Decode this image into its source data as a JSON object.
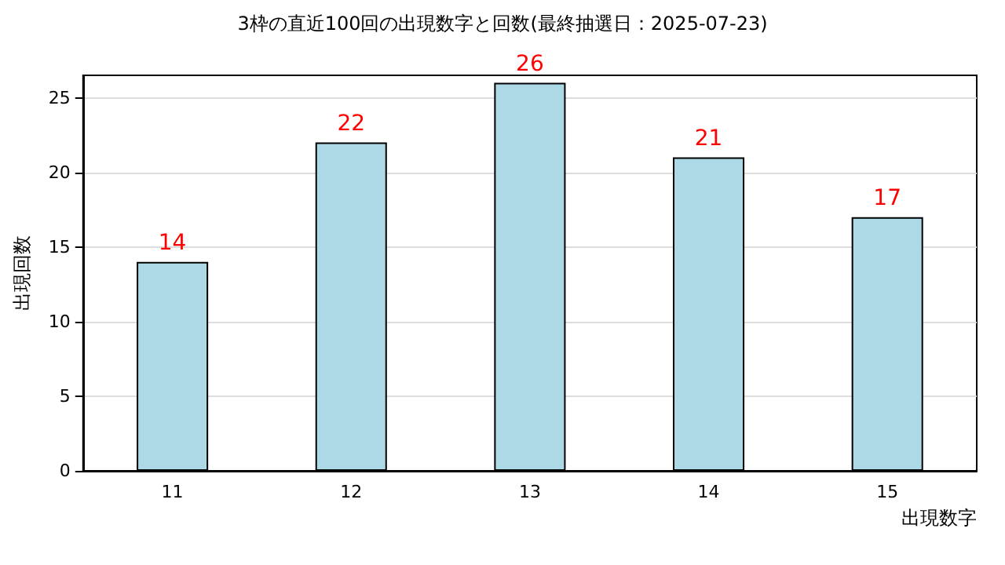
{
  "chart_data": {
    "type": "bar",
    "title": "3枠の直近100回の出現数字と回数(最終抽選日：2025-07-23)",
    "xlabel": "出現数字",
    "ylabel": "出現回数",
    "categories": [
      "11",
      "12",
      "13",
      "14",
      "15"
    ],
    "values": [
      14,
      22,
      26,
      21,
      17
    ],
    "color": "#add8e6",
    "ylim": [
      0,
      26.5
    ],
    "yticks": [
      0,
      5,
      10,
      15,
      20,
      25
    ],
    "grid": "y",
    "data_labels": true
  }
}
